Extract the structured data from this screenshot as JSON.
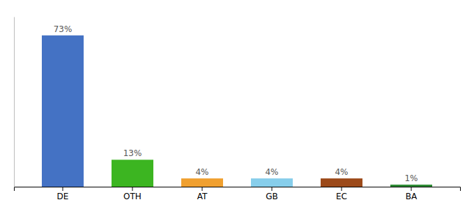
{
  "chart_data": {
    "type": "bar",
    "categories": [
      "DE",
      "OTH",
      "AT",
      "GB",
      "EC",
      "BA"
    ],
    "values": [
      73,
      13,
      4,
      4,
      4,
      1
    ],
    "value_labels": [
      "73%",
      "13%",
      "4%",
      "4%",
      "4%",
      "1%"
    ],
    "colors": [
      "#4472C4",
      "#3CB521",
      "#F0A030",
      "#87CEEB",
      "#9C4A1A",
      "#2E8B35"
    ],
    "ylim": [
      0,
      82
    ],
    "grid": false,
    "data_labels": true,
    "tick_labels": "x"
  }
}
